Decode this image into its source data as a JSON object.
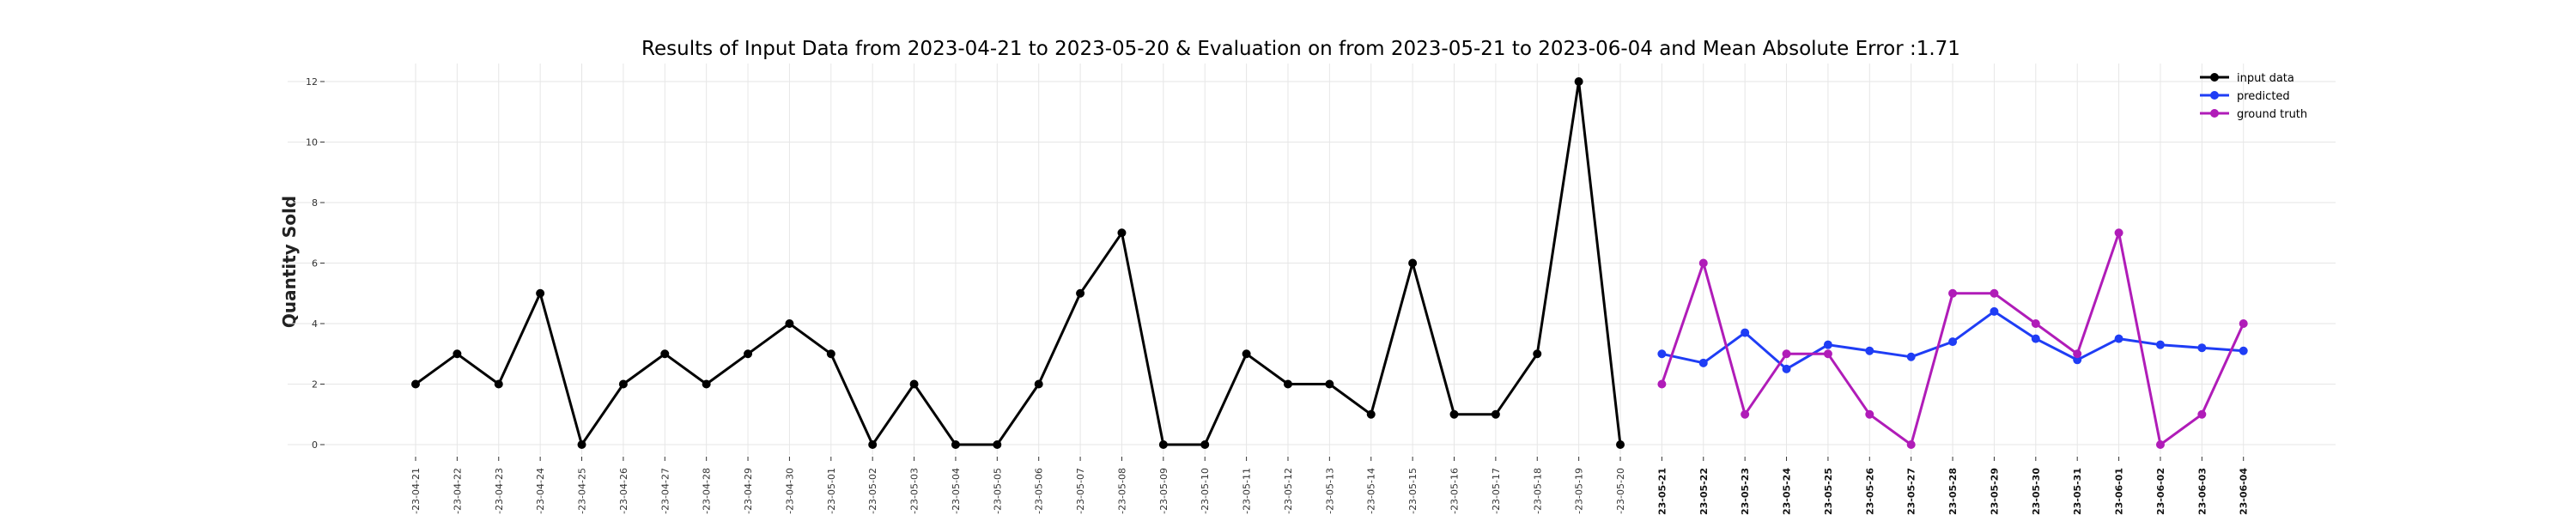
{
  "chart_data": {
    "type": "line",
    "title": "Results of Input Data from 2023-04-21 to 2023-05-20 & Evaluation on from 2023-05-21 to 2023-06-04 and Mean Absolute Error  :1.71",
    "xlabel": "",
    "ylabel": "Quantity Sold",
    "ylim": [
      0,
      12
    ],
    "yticks": [
      0,
      2,
      4,
      6,
      8,
      10,
      12
    ],
    "grid": true,
    "legend_position": "top-right",
    "x_tick_labels": [
      "-23-04-21",
      "-23-04-22",
      "-23-04-23",
      "-23-04-24",
      "-23-04-25",
      "-23-04-26",
      "-23-04-27",
      "-23-04-28",
      "-23-04-29",
      "-23-04-30",
      "-23-05-01",
      "-23-05-02",
      "-23-05-03",
      "-23-05-04",
      "-23-05-05",
      "-23-05-06",
      "-23-05-07",
      "-23-05-08",
      "-23-05-09",
      "-23-05-10",
      "-23-05-11",
      "-23-05-12",
      "-23-05-13",
      "-23-05-14",
      "-23-05-15",
      "-23-05-16",
      "-23-05-17",
      "-23-05-18",
      "-23-05-19",
      "-23-05-20",
      "-23-05-21",
      "-23-05-22",
      "-23-05-23",
      "-23-05-24",
      "-23-05-25",
      "-23-05-26",
      "-23-05-27",
      "-23-05-28",
      "-23-05-29",
      "-23-05-30",
      "-23-05-31",
      "-23-06-01",
      "-23-06-02",
      "-23-06-03",
      "-23-06-04"
    ],
    "bold_tick_start": 30,
    "series": [
      {
        "name": "input data",
        "color": "#000000",
        "start_index": 0,
        "values": [
          2,
          3,
          2,
          5,
          0,
          2,
          3,
          2,
          3,
          4,
          3,
          0,
          2,
          0,
          0,
          2,
          5,
          7,
          0,
          0,
          3,
          2,
          2,
          1,
          6,
          1,
          1,
          3,
          12,
          0
        ]
      },
      {
        "name": "predicted",
        "color": "#1f3df5",
        "start_index": 30,
        "values": [
          3.0,
          2.7,
          3.7,
          2.5,
          3.3,
          3.1,
          2.9,
          3.4,
          4.4,
          3.5,
          2.8,
          3.5,
          3.3,
          3.2,
          3.1
        ]
      },
      {
        "name": "ground truth",
        "color": "#b01cb8",
        "start_index": 30,
        "values": [
          2,
          6,
          1,
          3,
          3,
          1,
          0,
          5,
          5,
          4,
          3,
          7,
          0,
          1,
          4
        ]
      }
    ]
  }
}
